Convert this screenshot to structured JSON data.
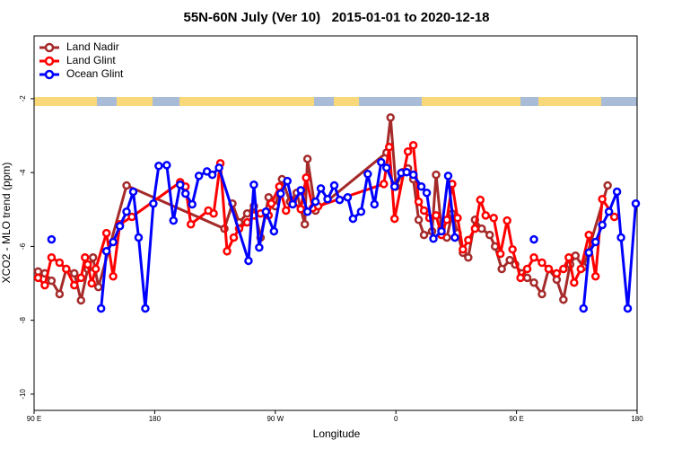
{
  "chart_data": {
    "type": "line",
    "title": "55N-60N July (Ver 10)   2015-01-01 to 2020-12-18",
    "x_label": "Longitude",
    "y_label": "XCO2 - MLO trend (ppm)",
    "xlim": [
      -270,
      180
    ],
    "xticks": [
      {
        "value": -270,
        "label": "90 E"
      },
      {
        "value": -180,
        "label": "180"
      },
      {
        "value": -90,
        "label": "90 W"
      },
      0,
      {
        "value": 90,
        "label": "90 E"
      },
      {
        "value": 180,
        "label": "180"
      }
    ],
    "ylim": [
      -10.44,
      -0.3
    ],
    "yticks": [
      -10,
      -8,
      -6,
      -4,
      -2
    ],
    "legend": "top-left",
    "series": [
      {
        "name": "Land Nadir",
        "color": "#a52a2a",
        "x": [
          -267,
          -262,
          -257,
          -251,
          -246,
          -240,
          -235,
          -230,
          -226,
          -222,
          -201,
          -128,
          -122,
          -117,
          -111,
          -106,
          -101,
          -95,
          -90,
          -85,
          -79,
          -74,
          -68,
          -66,
          -60,
          -7,
          -4,
          0,
          5,
          9,
          13,
          17,
          21,
          27,
          30,
          34,
          38,
          42,
          46,
          50,
          54,
          59,
          64,
          70,
          74,
          79,
          85,
          89,
          94,
          98,
          103,
          109,
          114,
          120,
          125,
          130,
          134,
          140,
          158
        ],
        "values": [
          -6.68,
          -6.73,
          -6.93,
          -7.29,
          -6.61,
          -6.73,
          -7.46,
          -6.61,
          -6.3,
          -7.1,
          -4.35,
          -5.52,
          -4.84,
          -5.35,
          -5.11,
          -4.91,
          -5.76,
          -4.67,
          -4.91,
          -4.18,
          -4.79,
          -4.55,
          -5.4,
          -3.63,
          -5.03,
          -3.46,
          -2.51,
          -4.38,
          -3.99,
          -3.89,
          -4.18,
          -5.28,
          -5.69,
          -5.59,
          -4.06,
          -5.52,
          -5.76,
          -5.11,
          -5.64,
          -6.17,
          -6.3,
          -5.28,
          -5.52,
          -5.69,
          -6.0,
          -6.61,
          -6.37,
          -6.49,
          -6.73,
          -6.85,
          -6.98,
          -7.29,
          -6.61,
          -6.9,
          -7.44,
          -6.49,
          -6.25,
          -6.56,
          -4.35
        ]
      },
      {
        "name": "Land Glint",
        "color": "#ff0000",
        "x": [
          -267,
          -262,
          -257,
          -251,
          -246,
          -240,
          -235,
          -232,
          -230,
          -227,
          -224,
          -216,
          -211,
          -206,
          -197,
          -161,
          -157,
          -153,
          -140,
          -136,
          -131,
          -126,
          -121,
          -117,
          -111,
          -106,
          -101,
          -95,
          -93,
          -87,
          -82,
          -77,
          -71,
          -67,
          -62,
          -58,
          -9,
          -5,
          -1,
          9,
          13,
          17,
          21,
          25,
          30,
          34,
          38,
          42,
          46,
          50,
          54,
          59,
          63,
          67,
          73,
          78,
          83,
          87,
          93,
          98,
          103,
          109,
          114,
          120,
          125,
          129,
          133,
          138,
          144,
          149,
          154,
          163
        ],
        "values": [
          -6.85,
          -7.05,
          -6.3,
          -6.44,
          -6.61,
          -7.05,
          -6.85,
          -6.3,
          -6.49,
          -7.0,
          -6.61,
          -5.64,
          -6.81,
          -5.4,
          -5.2,
          -4.26,
          -4.38,
          -5.4,
          -5.03,
          -5.11,
          -3.75,
          -6.13,
          -5.76,
          -5.52,
          -5.35,
          -5.16,
          -5.11,
          -5.16,
          -4.84,
          -4.38,
          -5.03,
          -4.79,
          -4.99,
          -4.14,
          -4.96,
          -4.91,
          -4.31,
          -3.31,
          -5.25,
          -3.43,
          -3.26,
          -4.79,
          -5.03,
          -5.23,
          -5.16,
          -5.69,
          -5.28,
          -4.31,
          -5.23,
          -6.08,
          -5.83,
          -5.52,
          -4.74,
          -5.16,
          -5.23,
          -6.2,
          -5.3,
          -6.08,
          -6.85,
          -6.61,
          -6.3,
          -6.44,
          -6.61,
          -6.73,
          -6.61,
          -6.3,
          -6.98,
          -6.61,
          -5.69,
          -6.81,
          -4.72,
          -5.2
        ]
      },
      {
        "name": "Ocean Glint",
        "color": "#0000ff",
        "x": [
          -257,
          -240,
          -220,
          -216,
          -211,
          -206,
          -201,
          -196,
          -192,
          -187,
          -181,
          -177,
          -171,
          -166,
          -161,
          -157,
          -152,
          -147,
          -141,
          -137,
          -132,
          -110,
          -106,
          -102,
          -97,
          -91,
          -86,
          -81,
          -77,
          -71,
          -66,
          -60,
          -56,
          -51,
          -46,
          -42,
          -36,
          -32,
          -26,
          -21,
          -16,
          -11,
          -7,
          -1,
          4,
          8,
          13,
          19,
          23,
          28,
          34,
          39,
          44,
          70,
          103,
          125,
          140,
          144,
          149,
          154,
          159,
          165,
          168,
          173,
          179
        ],
        "values": [
          -5.81,
          null,
          -7.68,
          -6.13,
          -5.88,
          -5.45,
          -5.06,
          -4.52,
          -5.76,
          -7.68,
          -4.84,
          -3.82,
          -3.8,
          -5.3,
          -4.33,
          -4.57,
          -4.86,
          -4.09,
          -3.97,
          -4.06,
          -3.87,
          -6.39,
          -4.33,
          -6.03,
          -5.06,
          -5.59,
          -4.57,
          -4.23,
          -4.86,
          -4.48,
          -5.06,
          -4.79,
          -4.43,
          -4.72,
          -4.35,
          -4.74,
          -4.67,
          -5.25,
          -5.06,
          -4.04,
          -4.86,
          -3.72,
          -3.87,
          -4.38,
          -4.01,
          -3.99,
          -4.06,
          -4.38,
          -4.55,
          -5.79,
          -5.59,
          -4.09,
          -5.76,
          null,
          -5.81,
          null,
          -7.68,
          -6.17,
          -5.88,
          -5.42,
          -5.06,
          -4.52,
          -5.76,
          -7.68,
          -4.84
        ]
      }
    ]
  }
}
